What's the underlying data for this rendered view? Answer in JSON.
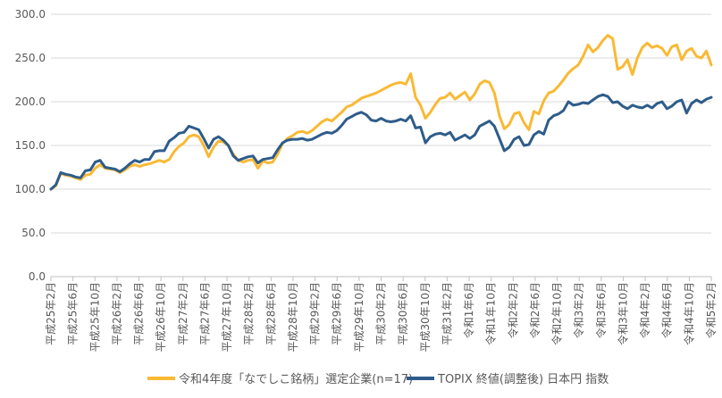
{
  "chart_data": {
    "type": "line",
    "title": "",
    "xlabel": "",
    "ylabel": "",
    "ylim": [
      0,
      300
    ],
    "y_ticks": [
      "0.0",
      "50.0",
      "100.0",
      "150.0",
      "200.0",
      "250.0",
      "300.0"
    ],
    "grid": "horizontal",
    "legend_position": "bottom",
    "x_tick_labels": [
      "平成25年2月",
      "平成25年6月",
      "平成25年10月",
      "平成26年2月",
      "平成26年6月",
      "平成26年10月",
      "平成27年2月",
      "平成27年6月",
      "平成27年10月",
      "平成28年2月",
      "平成28年6月",
      "平成28年10月",
      "平成29年2月",
      "平成29年6月",
      "平成29年10月",
      "平成30年2月",
      "平成30年6月",
      "平成30年10月",
      "平成31年2月",
      "令和1年6月",
      "令和1年10月",
      "令和2年2月",
      "令和2年6月",
      "令和2年10月",
      "令和3年2月",
      "令和3年6月",
      "令和3年10月",
      "令和4年2月",
      "令和4年6月",
      "令和4年10月",
      "令和5年2月"
    ],
    "series": [
      {
        "name": "令和4年度「なでしこ銘柄」選定企業(n=17)",
        "color": "#F9B935",
        "values": [
          100,
          104,
          118,
          116,
          115,
          113,
          111,
          116,
          117,
          124,
          128,
          124,
          123,
          122,
          119,
          122,
          126,
          128,
          126,
          128,
          129,
          131,
          133,
          131,
          134,
          143,
          149,
          153,
          160,
          162,
          160,
          150,
          137,
          148,
          155,
          154,
          150,
          140,
          133,
          131,
          133,
          134,
          124,
          132,
          130,
          131,
          140,
          152,
          158,
          161,
          165,
          166,
          164,
          167,
          172,
          177,
          180,
          178,
          183,
          188,
          194,
          196,
          200,
          204,
          206,
          208,
          210,
          213,
          216,
          219,
          221,
          222,
          220,
          232,
          205,
          196,
          181,
          188,
          197,
          204,
          205,
          210,
          203,
          207,
          211,
          202,
          209,
          220,
          224,
          222,
          210,
          184,
          169,
          174,
          186,
          188,
          176,
          168,
          189,
          186,
          201,
          210,
          212,
          218,
          225,
          233,
          238,
          242,
          252,
          265,
          257,
          262,
          270,
          276,
          272,
          237,
          240,
          248,
          231,
          250,
          262,
          267,
          262,
          264,
          261,
          253,
          263,
          265,
          248,
          258,
          261,
          252,
          250,
          258,
          242
        ]
      },
      {
        "name": "TOPIX 終値(調整後) 日本円 指数",
        "color": "#2E5C8A",
        "values": [
          100,
          105,
          119,
          117,
          116,
          114,
          113,
          121,
          122,
          131,
          133,
          125,
          124,
          123,
          120,
          124,
          129,
          133,
          131,
          134,
          134,
          143,
          144,
          144,
          155,
          159,
          164,
          165,
          172,
          170,
          168,
          158,
          147,
          157,
          160,
          156,
          150,
          138,
          133,
          135,
          137,
          138,
          130,
          134,
          135,
          136,
          145,
          153,
          156,
          157,
          157,
          158,
          156,
          157,
          160,
          163,
          165,
          164,
          167,
          173,
          180,
          183,
          186,
          188,
          185,
          179,
          178,
          181,
          178,
          177,
          178,
          180,
          178,
          184,
          170,
          171,
          153,
          160,
          163,
          164,
          162,
          165,
          156,
          159,
          162,
          158,
          162,
          172,
          175,
          178,
          172,
          158,
          144,
          148,
          157,
          160,
          150,
          151,
          162,
          166,
          163,
          179,
          184,
          186,
          190,
          200,
          196,
          197,
          199,
          198,
          202,
          206,
          208,
          206,
          199,
          200,
          195,
          192,
          196,
          194,
          193,
          196,
          193,
          198,
          200,
          192,
          195,
          200,
          202,
          187,
          198,
          202,
          199,
          203,
          205
        ]
      }
    ]
  }
}
